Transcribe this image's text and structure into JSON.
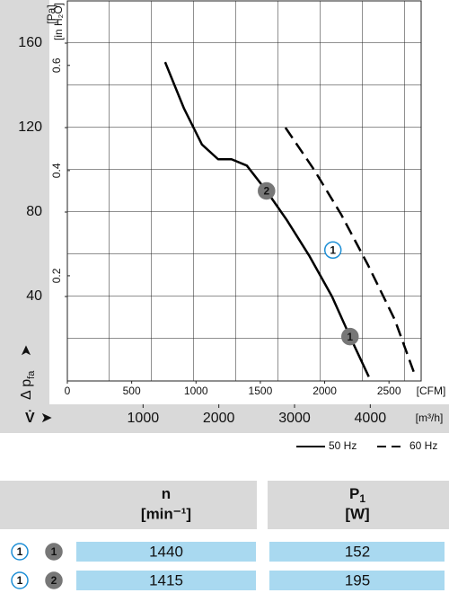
{
  "chart_data": {
    "type": "line",
    "y_label": "Δ p",
    "y_label_sub": "fa",
    "y_unit": "[Pa]",
    "y2_unit": "[in H₂O]",
    "x_unit": "[CFM]",
    "x2_label": "V̇",
    "x2_unit": "[m³/h]",
    "xlim": [
      0,
      2750
    ],
    "xticks": [
      0,
      500,
      1000,
      1500,
      2000,
      2500
    ],
    "x2lim": [
      0,
      4672
    ],
    "x2ticks": [
      1000,
      2000,
      3000,
      4000
    ],
    "ylim": [
      0,
      180
    ],
    "yticks": [
      40,
      80,
      120,
      160
    ],
    "y2lim": [
      0,
      0.7226
    ],
    "y2ticks": [
      0.2,
      0.4,
      0.6
    ],
    "series": [
      {
        "name": "50 Hz",
        "color": "#000000",
        "dash": false,
        "x": [
          760,
          907,
          1046,
          1172,
          1276,
          1395,
          1548,
          1708,
          1883,
          2057,
          2197,
          2343
        ],
        "values": [
          151,
          129,
          112,
          105,
          105,
          102,
          90,
          76,
          59,
          40,
          21,
          2
        ]
      },
      {
        "name": "60 Hz",
        "color": "#000000",
        "dash": true,
        "x": [
          1695,
          1918,
          2127,
          2336,
          2545,
          2706
        ],
        "values": [
          120,
          100,
          79,
          55,
          29,
          2
        ]
      }
    ],
    "markers": [
      {
        "label": "2",
        "x": 1548,
        "y": 90,
        "color": "#777777",
        "filled": true
      },
      {
        "label": "1",
        "x": 2197,
        "y": 21,
        "color": "#777777",
        "filled": true
      },
      {
        "label": "1",
        "x": 2064,
        "y": 62,
        "color": "#1e8fd6",
        "filled": false
      }
    ]
  },
  "table": {
    "columns": [
      {
        "symbol": "n",
        "subscript": "",
        "unit": "[min⁻¹]"
      },
      {
        "symbol": "P",
        "subscript": "1",
        "unit": "[W]"
      }
    ],
    "rows": [
      {
        "markers": [
          "1",
          "1"
        ],
        "cells": [
          "1440",
          "152"
        ]
      },
      {
        "markers": [
          "1",
          "2"
        ],
        "cells": [
          "1415",
          "195"
        ]
      }
    ]
  }
}
